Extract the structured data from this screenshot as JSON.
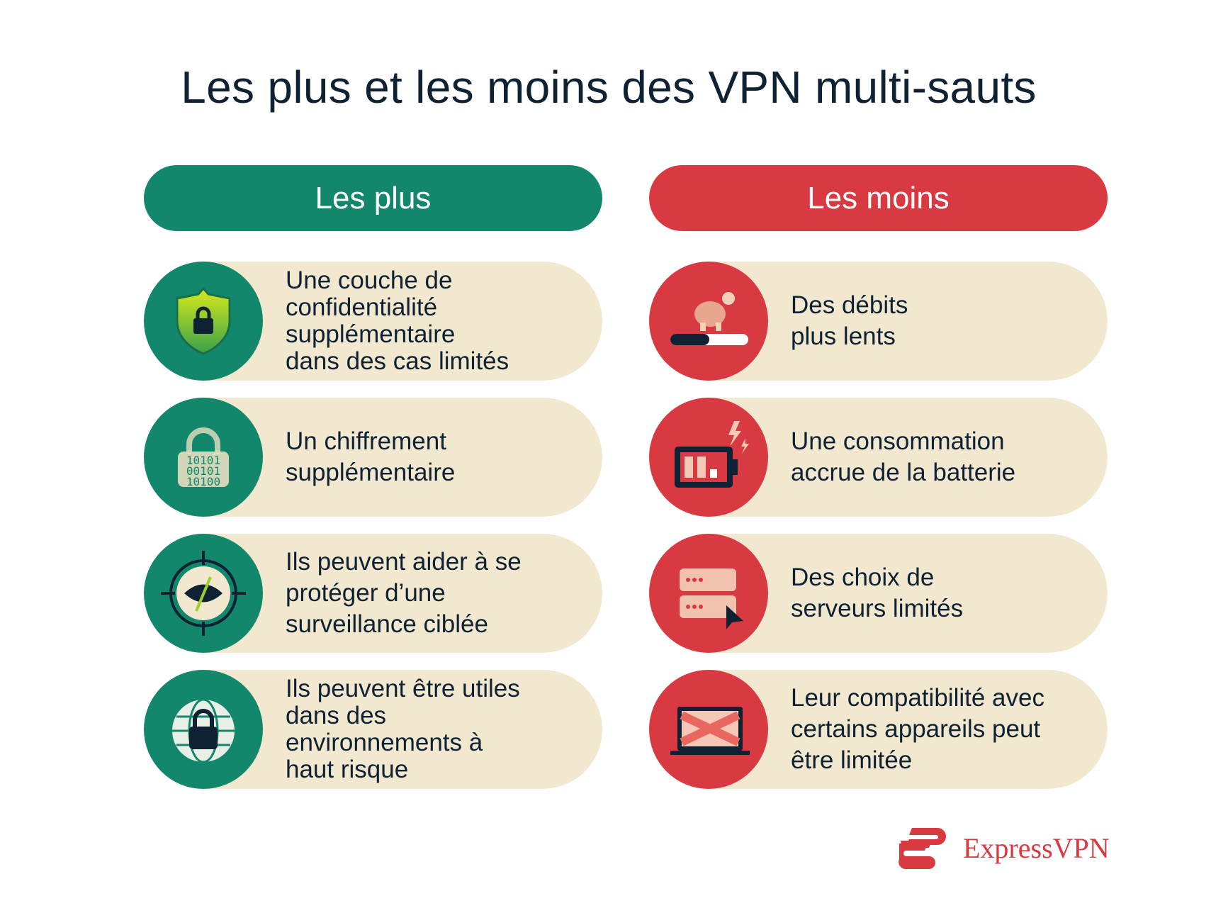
{
  "title": "Les plus et les moins des VPN multi-sauts",
  "colors": {
    "plus": "#12876b",
    "moins": "#d93a42",
    "card": "#f1e8cf",
    "text": "#0f2233"
  },
  "columns": {
    "plus": {
      "header": "Les plus",
      "items": [
        {
          "icon": "shield-lock-icon",
          "text": "Une couche de\nconfidentialité\nsupplémentaire\ndans des cas limités"
        },
        {
          "icon": "binary-lock-icon",
          "text": "Un chiffrement\nsupplémentaire"
        },
        {
          "icon": "crosshair-eye-slash-icon",
          "text": "Ils peuvent aider à se\nprotéger d’une\nsurveillance ciblée"
        },
        {
          "icon": "globe-lock-icon",
          "text": "Ils peuvent être utiles\ndans des\nenvironnements à\nhaut risque"
        }
      ]
    },
    "moins": {
      "header": "Les moins",
      "items": [
        {
          "icon": "turtle-progress-icon",
          "text": "Des débits\nplus lents"
        },
        {
          "icon": "battery-lightning-icon",
          "text": "Une consommation\naccrue de la batterie"
        },
        {
          "icon": "server-cursor-icon",
          "text": "Des choix de\nserveurs limités"
        },
        {
          "icon": "laptop-blocked-icon",
          "text": "Leur compatibilité avec\ncertains appareils peut\nêtre limitée"
        }
      ]
    }
  },
  "logo": {
    "text": "ExpressVPN"
  }
}
